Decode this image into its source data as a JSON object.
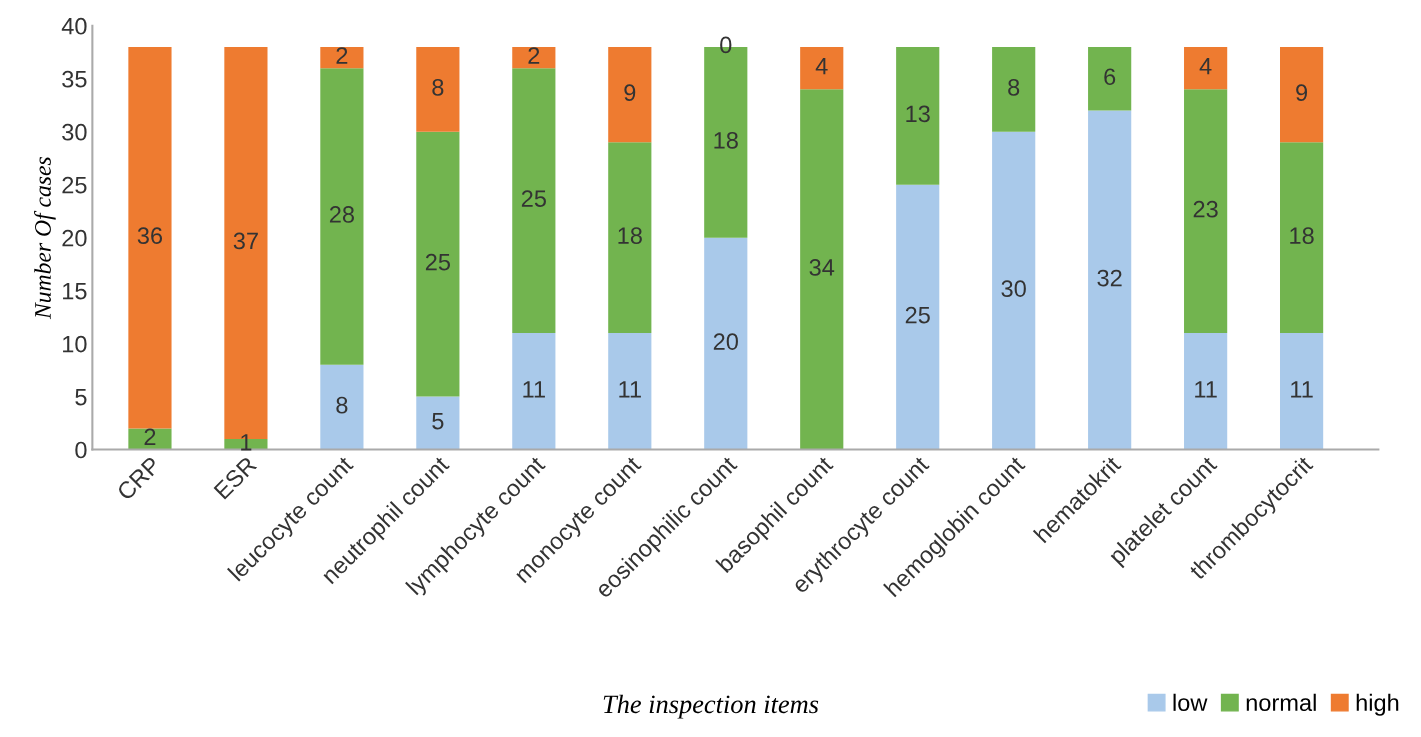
{
  "chart_data": {
    "type": "bar",
    "stacked": true,
    "xlabel": "The inspection items",
    "ylabel": "Number Of cases",
    "categories": [
      "CRP",
      "ESR",
      "leucocyte count",
      "neutrophil count",
      "lymphocyte count",
      "monocyte count",
      "eosinophilic count",
      "basophil count",
      "erythrocyte count",
      "hemoglobin count",
      "hematokrit",
      "platelet count",
      "thrombocytocrit"
    ],
    "series": [
      {
        "name": "low",
        "color": "#a9c9ea",
        "values": [
          0,
          0,
          8,
          5,
          11,
          11,
          20,
          0,
          25,
          30,
          32,
          11,
          11
        ],
        "value_labels": [
          null,
          null,
          "8",
          "5",
          "11",
          "11",
          "20",
          null,
          "25",
          "30",
          "32",
          "11",
          "11"
        ]
      },
      {
        "name": "normal",
        "color": "#72b44f",
        "values": [
          2,
          1,
          28,
          25,
          25,
          18,
          18,
          34,
          13,
          8,
          6,
          23,
          18
        ],
        "value_labels": [
          "2",
          "1",
          "28",
          "25",
          "25",
          "18",
          "18",
          "34",
          "13",
          "8",
          "6",
          "23",
          "18"
        ]
      },
      {
        "name": "high",
        "color": "#ee7b30",
        "values": [
          36,
          37,
          2,
          8,
          2,
          9,
          0,
          4,
          0,
          0,
          0,
          4,
          9
        ],
        "value_labels": [
          "36",
          "37",
          "2",
          "8",
          "2",
          "9",
          "0",
          "4",
          null,
          null,
          null,
          "4",
          "9"
        ]
      }
    ],
    "ylim": [
      0,
      40
    ],
    "yticks": [
      0,
      5,
      10,
      15,
      20,
      25,
      30,
      35,
      40
    ],
    "grid": false,
    "legend": "bottom right"
  }
}
